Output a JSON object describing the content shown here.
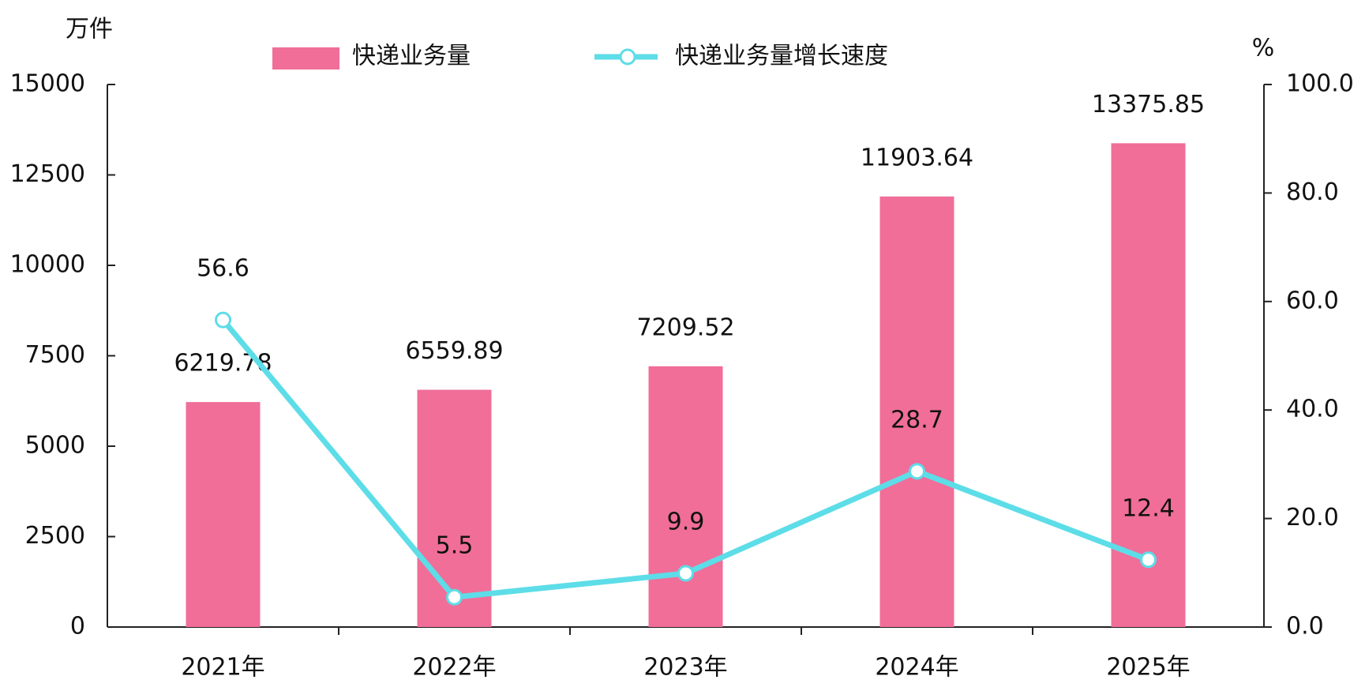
{
  "chart_data": {
    "type": "bar-line",
    "y_unit": "万件",
    "y2_unit": "%",
    "categories": [
      "2021年",
      "2022年",
      "2023年",
      "2024年",
      "2025年"
    ],
    "series": [
      {
        "name": "快递业务量",
        "color": "#f06e98",
        "type": "bar",
        "values": [
          6219.78,
          6559.89,
          7209.52,
          11903.64,
          13375.85
        ]
      },
      {
        "name": "快递业务量增长速度",
        "color": "#5ddde8",
        "type": "line",
        "axis": "y2",
        "values": [
          56.6,
          5.5,
          9.9,
          28.7,
          12.4
        ]
      }
    ],
    "ylim": [
      0,
      15000
    ],
    "yticks": [
      0,
      2500,
      5000,
      7500,
      10000,
      12500,
      15000
    ],
    "y2lim": [
      0,
      100
    ],
    "y2ticks": [
      {
        "value": 0,
        "label": "0.0"
      },
      {
        "value": 20,
        "label": "20.0"
      },
      {
        "value": 40,
        "label": "40.0"
      },
      {
        "value": 60,
        "label": "60.0"
      },
      {
        "value": 80,
        "label": "80.0"
      },
      {
        "value": 100,
        "label": "100.0"
      }
    ]
  }
}
